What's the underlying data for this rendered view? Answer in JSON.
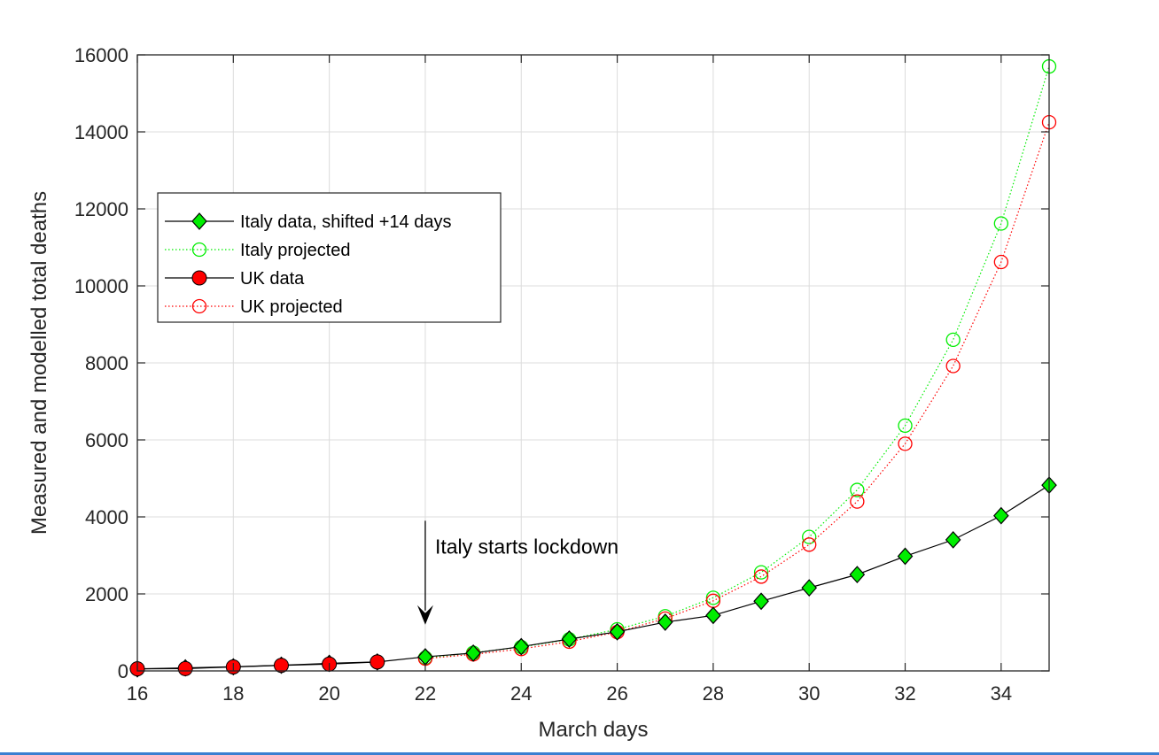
{
  "chart_data": {
    "type": "line",
    "xlabel": "March days",
    "ylabel": "Measured and modelled total deaths",
    "xlim": [
      16,
      35
    ],
    "ylim": [
      0,
      16000
    ],
    "xticks": [
      16,
      18,
      20,
      22,
      24,
      26,
      28,
      30,
      32,
      34
    ],
    "yticks": [
      0,
      2000,
      4000,
      6000,
      8000,
      10000,
      12000,
      14000,
      16000
    ],
    "grid": true,
    "legend_position": "upper-left",
    "series": [
      {
        "name": "Italy data, shifted +14 days",
        "color": "#00ee00",
        "line_color": "#000000",
        "marker": "diamond-filled",
        "line_style": "solid",
        "x": [
          16,
          17,
          18,
          19,
          20,
          21,
          22,
          23,
          24,
          25,
          26,
          27,
          28,
          29,
          30,
          31,
          32,
          33,
          34,
          35
        ],
        "y": [
          52,
          79,
          107,
          148,
          197,
          233,
          366,
          463,
          631,
          827,
          1016,
          1266,
          1441,
          1809,
          2158,
          2503,
          2978,
          3405,
          4032,
          4825
        ]
      },
      {
        "name": "Italy projected",
        "color": "#00ee00",
        "marker": "circle-open",
        "line_style": "dotted",
        "x": [
          22,
          23,
          24,
          25,
          26,
          27,
          28,
          29,
          30,
          31,
          32,
          33,
          34,
          35
        ],
        "y": [
          340,
          470,
          620,
          820,
          1080,
          1420,
          1900,
          2560,
          3480,
          4700,
          6370,
          8600,
          11620,
          15700
        ]
      },
      {
        "name": "UK data",
        "color": "#ff0000",
        "line_color": "#000000",
        "marker": "circle-filled",
        "line_style": "solid",
        "x": [
          16,
          17,
          18,
          19,
          20,
          21
        ],
        "y": [
          55,
          60,
          104,
          144,
          177,
          233
        ]
      },
      {
        "name": "UK projected",
        "color": "#ff0000",
        "marker": "circle-open",
        "line_style": "dotted",
        "x": [
          22,
          23,
          24,
          25,
          26,
          27,
          28,
          29,
          30,
          31,
          32,
          33,
          34,
          35
        ],
        "y": [
          320,
          430,
          570,
          760,
          1010,
          1360,
          1820,
          2450,
          3280,
          4400,
          5900,
          7920,
          10620,
          14250
        ]
      }
    ],
    "annotations": [
      {
        "text": "Italy starts lockdown",
        "arrow_x": 22,
        "arrow_y_from": 3900,
        "arrow_y_to": 1200
      }
    ]
  }
}
